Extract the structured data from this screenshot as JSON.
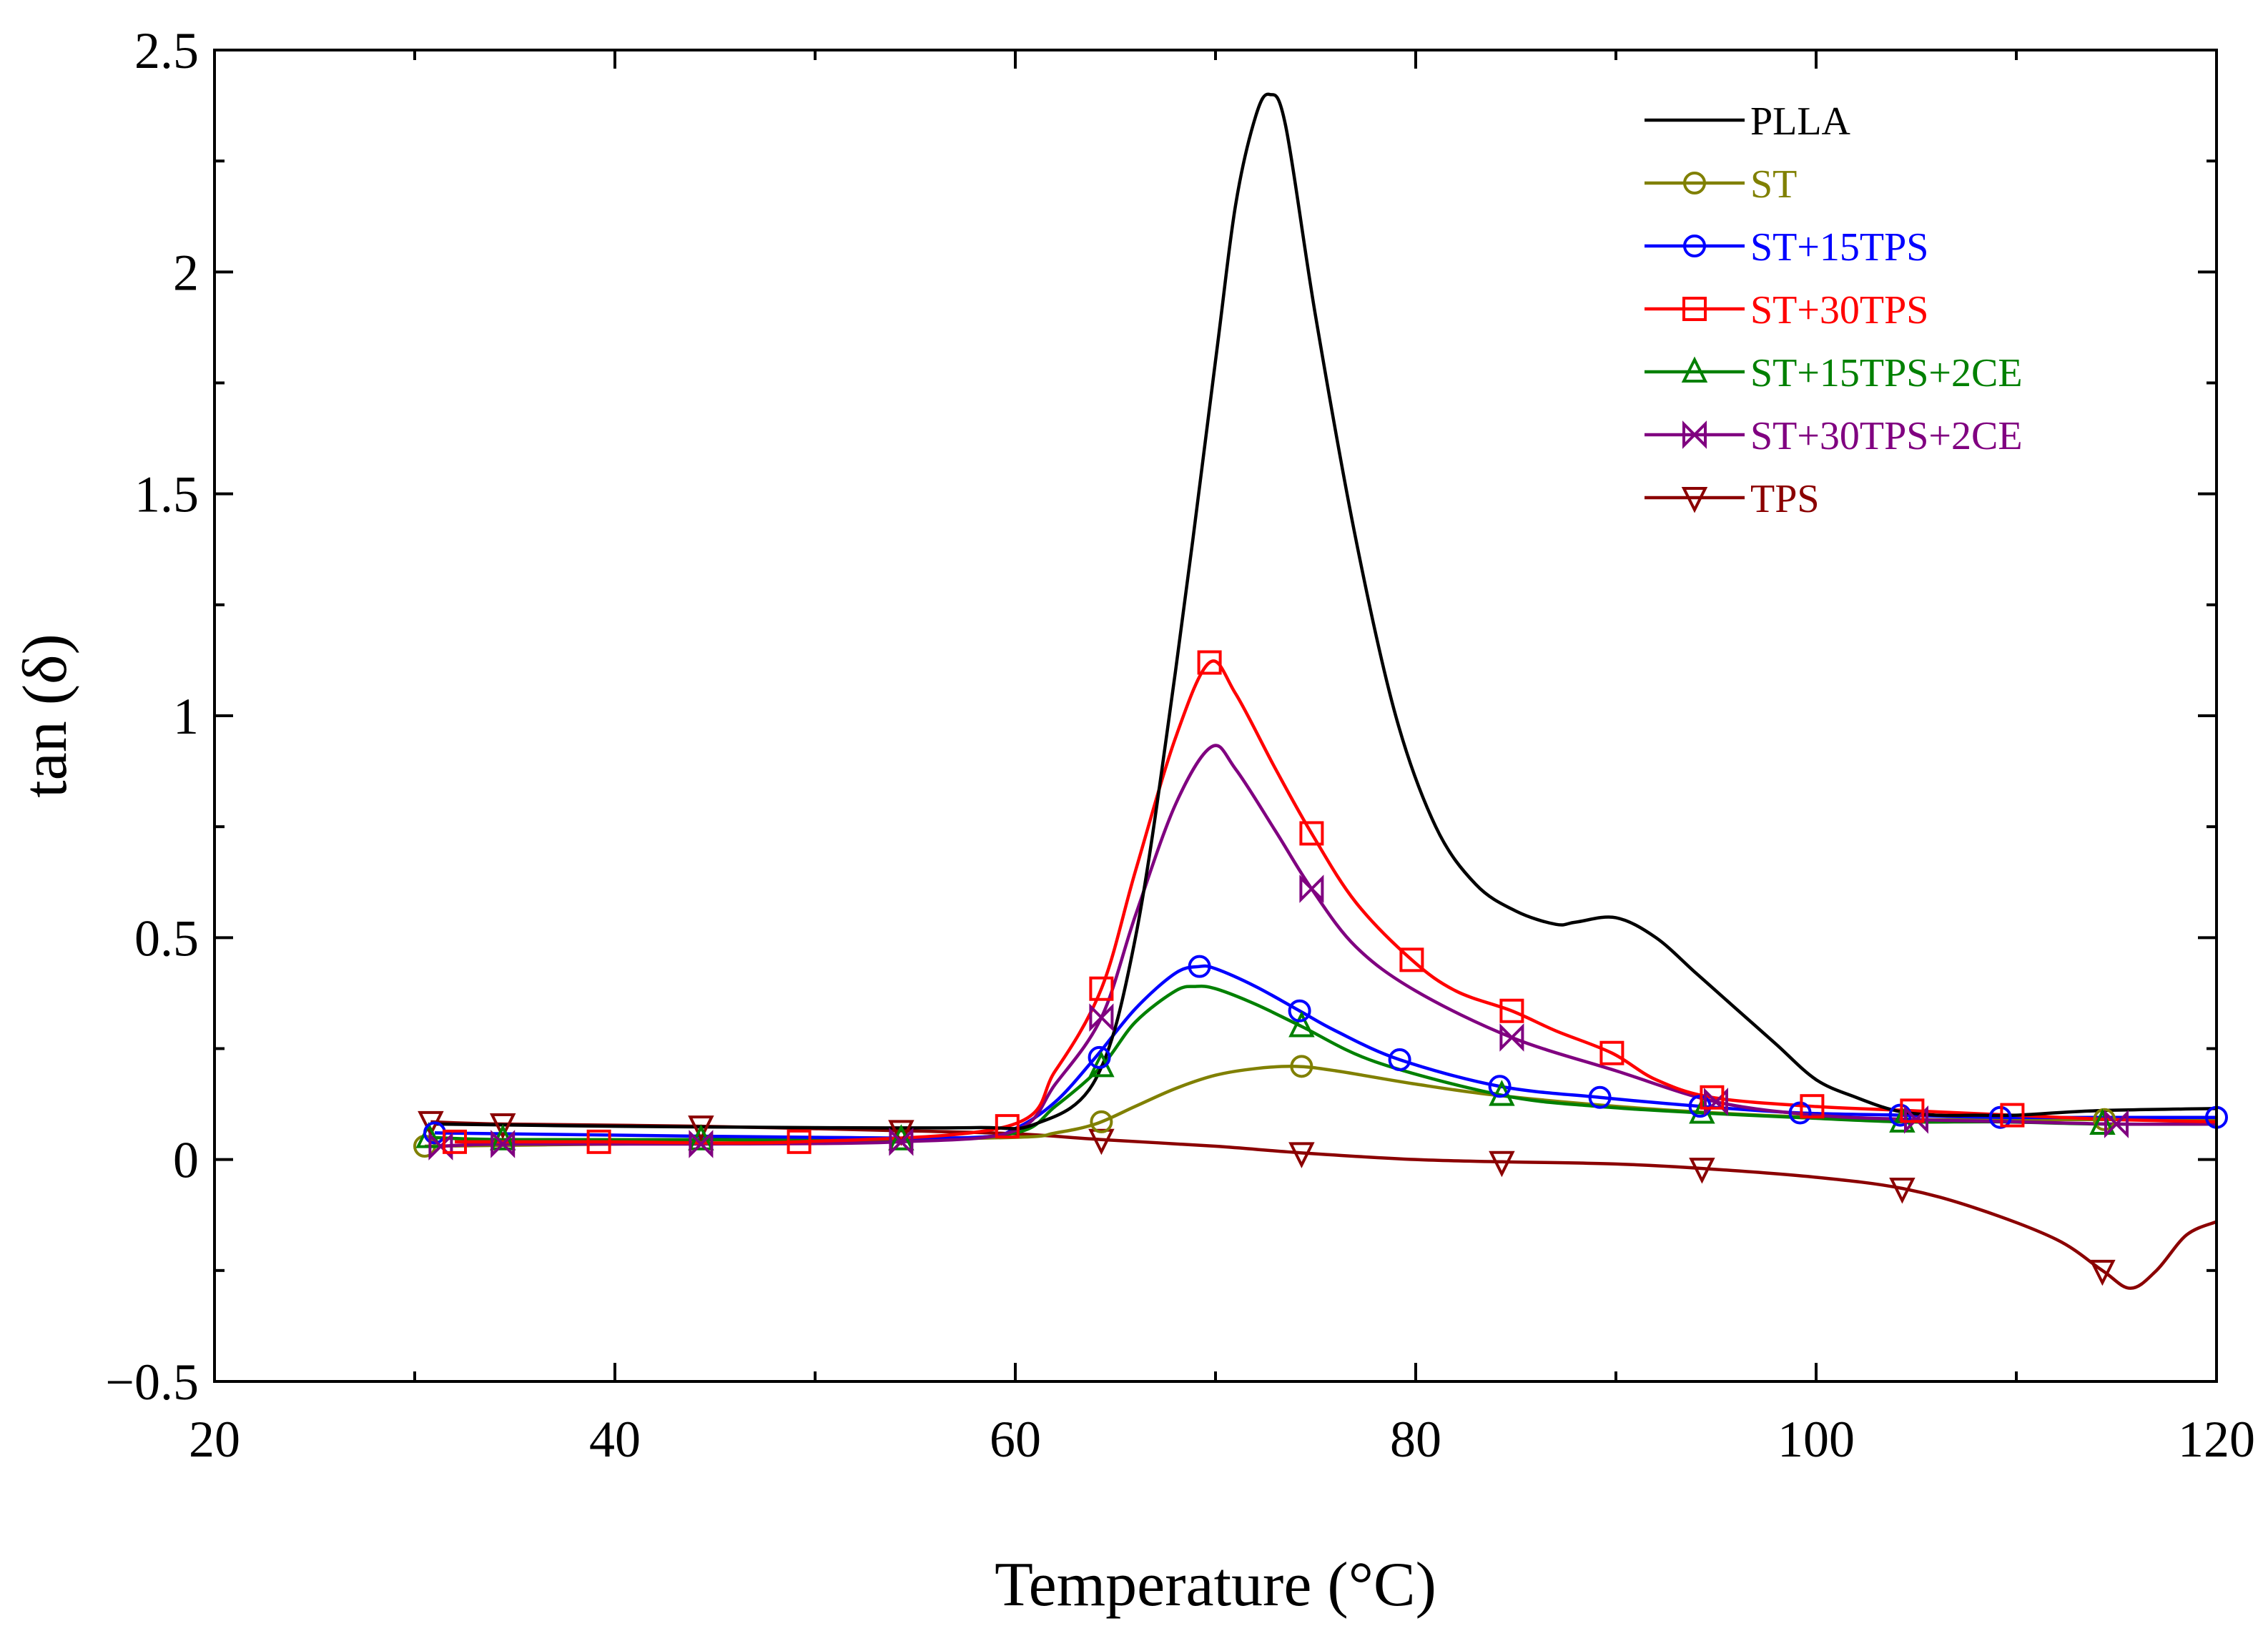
{
  "chart_data": {
    "type": "line",
    "title": "",
    "xlabel": "Temperature (°C)",
    "ylabel": "tan (δ)",
    "xlim": [
      20,
      120
    ],
    "ylim": [
      -0.5,
      2.5
    ],
    "xticks": [
      20,
      40,
      60,
      80,
      100,
      120
    ],
    "xtick_labels": [
      "20",
      "40",
      "60",
      "80",
      "100",
      "120"
    ],
    "yticks": [
      -0.5,
      0,
      0.5,
      1,
      1.5,
      2,
      2.5
    ],
    "ytick_labels": [
      "−0.5",
      "0",
      "0.5",
      "1",
      "1.5",
      "2",
      "2.5"
    ],
    "grid": false,
    "legend_position": "top-right",
    "series": [
      {
        "name": "PLLA",
        "color": "#000000",
        "marker": "none",
        "x": [
          31,
          40,
          50,
          58,
          61,
          64,
          66,
          68,
          70,
          71,
          72,
          72.7,
          73.5,
          75,
          77,
          79,
          81,
          83,
          85,
          87,
          88,
          90,
          92,
          94,
          96,
          98,
          100,
          102,
          104,
          106,
          108,
          110,
          114,
          120
        ],
        "y": [
          0.08,
          0.075,
          0.072,
          0.072,
          0.08,
          0.18,
          0.5,
          1.1,
          1.8,
          2.15,
          2.35,
          2.4,
          2.33,
          1.9,
          1.4,
          1.0,
          0.75,
          0.62,
          0.56,
          0.53,
          0.535,
          0.545,
          0.5,
          0.42,
          0.34,
          0.26,
          0.18,
          0.14,
          0.11,
          0.1,
          0.1,
          0.1,
          0.11,
          0.115
        ],
        "marker_x": [],
        "marker_y": []
      },
      {
        "name": "ST",
        "color": "#808000",
        "marker": "circle",
        "x": [
          30.5,
          40,
          50,
          60,
          62,
          64,
          66,
          68,
          70,
          72,
          74,
          76,
          80,
          84,
          90,
          95,
          100,
          105,
          110,
          114,
          120
        ],
        "y": [
          0.03,
          0.035,
          0.04,
          0.05,
          0.06,
          0.08,
          0.12,
          0.16,
          0.19,
          0.205,
          0.21,
          0.2,
          0.17,
          0.145,
          0.12,
          0.105,
          0.095,
          0.09,
          0.09,
          0.09,
          0.09
        ],
        "marker_x": [
          30.5,
          64.3,
          74.3,
          114.4
        ],
        "marker_y": [
          0.03,
          0.085,
          0.21,
          0.09
        ]
      },
      {
        "name": "ST+15TPS",
        "color": "#0000ff",
        "marker": "circle",
        "x": [
          31,
          40,
          50,
          58,
          60,
          62,
          64,
          66,
          68,
          69.2,
          70,
          72,
          74.2,
          76,
          79.2,
          84.2,
          89.2,
          94.2,
          99.2,
          104.2,
          109.2,
          114.2,
          120
        ],
        "y": [
          0.06,
          0.055,
          0.05,
          0.05,
          0.07,
          0.13,
          0.23,
          0.34,
          0.42,
          0.435,
          0.43,
          0.39,
          0.335,
          0.29,
          0.225,
          0.165,
          0.14,
          0.12,
          0.105,
          0.1,
          0.095,
          0.095,
          0.095
        ],
        "marker_x": [
          31,
          64.2,
          69.2,
          74.2,
          79.2,
          84.2,
          89.2,
          94.2,
          99.2,
          104.2,
          109.2,
          120
        ],
        "marker_y": [
          0.06,
          0.23,
          0.435,
          0.335,
          0.225,
          0.165,
          0.14,
          0.12,
          0.105,
          0.1,
          0.095,
          0.095
        ]
      },
      {
        "name": "ST+30TPS",
        "color": "#ff0000",
        "marker": "square",
        "x": [
          32,
          39.2,
          49.2,
          59.6,
          62,
          64.3,
          66,
          68,
          69.7,
          71,
          73,
          74.8,
          77,
          79.8,
          82,
          84.8,
          87,
          89.8,
          92,
          94.8,
          99.8,
          104.8,
          109.8,
          115,
          120
        ],
        "y": [
          0.04,
          0.04,
          0.04,
          0.075,
          0.2,
          0.385,
          0.65,
          0.95,
          1.12,
          1.05,
          0.88,
          0.735,
          0.58,
          0.45,
          0.38,
          0.335,
          0.29,
          0.24,
          0.18,
          0.14,
          0.12,
          0.11,
          0.1,
          0.09,
          0.085
        ],
        "marker_x": [
          32,
          39.2,
          49.2,
          59.6,
          64.3,
          69.7,
          74.8,
          79.8,
          84.8,
          89.8,
          94.8,
          99.8,
          104.8,
          109.8
        ],
        "marker_y": [
          0.04,
          0.04,
          0.04,
          0.075,
          0.385,
          1.12,
          0.735,
          0.45,
          0.335,
          0.24,
          0.14,
          0.12,
          0.11,
          0.1
        ]
      },
      {
        "name": "ST+15TPS+2CE",
        "color": "#008000",
        "marker": "triangle-up",
        "x": [
          30.7,
          34.4,
          44.3,
          54.3,
          60,
          62,
          64.3,
          66,
          68,
          69,
          70,
          72,
          74.3,
          78,
          84.3,
          89,
          94.3,
          99,
          104.3,
          109,
          114.3,
          120
        ],
        "y": [
          0.05,
          0.045,
          0.045,
          0.045,
          0.06,
          0.12,
          0.21,
          0.31,
          0.38,
          0.39,
          0.385,
          0.35,
          0.3,
          0.22,
          0.145,
          0.12,
          0.105,
          0.095,
          0.085,
          0.085,
          0.08,
          0.08
        ],
        "marker_x": [
          30.7,
          34.4,
          44.3,
          54.3,
          64.3,
          74.3,
          84.3,
          94.3,
          104.3,
          114.3
        ],
        "marker_y": [
          0.05,
          0.045,
          0.045,
          0.045,
          0.21,
          0.3,
          0.145,
          0.105,
          0.085,
          0.08
        ]
      },
      {
        "name": "ST+30TPS+2CE",
        "color": "#800080",
        "marker": "bowtie",
        "x": [
          31.3,
          34.4,
          44.3,
          54.3,
          60,
          62,
          64.3,
          66,
          68,
          69.8,
          71,
          73,
          74.8,
          77,
          80,
          84.8,
          90,
          95,
          100,
          105,
          110,
          115,
          120
        ],
        "y": [
          0.03,
          0.035,
          0.035,
          0.04,
          0.065,
          0.17,
          0.32,
          0.55,
          0.8,
          0.93,
          0.88,
          0.74,
          0.61,
          0.48,
          0.38,
          0.275,
          0.2,
          0.13,
          0.1,
          0.09,
          0.085,
          0.08,
          0.08
        ],
        "marker_x": [
          31.3,
          34.4,
          44.3,
          54.3,
          64.3,
          74.8,
          84.8,
          95,
          105,
          115
        ],
        "marker_y": [
          0.03,
          0.035,
          0.035,
          0.04,
          0.32,
          0.61,
          0.275,
          0.13,
          0.09,
          0.08
        ]
      },
      {
        "name": "TPS",
        "color": "#8b0000",
        "marker": "triangle-down",
        "x": [
          30.8,
          34.4,
          44.3,
          54.3,
          60,
          64.3,
          70,
          74.3,
          80,
          84.3,
          90,
          94.3,
          100,
          104.3,
          108,
          112,
          114.3,
          115.7,
          117,
          118.5,
          120
        ],
        "y": [
          0.085,
          0.08,
          0.075,
          0.065,
          0.058,
          0.045,
          0.03,
          0.015,
          0.0,
          -0.005,
          -0.01,
          -0.02,
          -0.04,
          -0.065,
          -0.11,
          -0.18,
          -0.25,
          -0.29,
          -0.25,
          -0.17,
          -0.14
        ],
        "marker_x": [
          30.8,
          34.4,
          44.3,
          54.3,
          64.3,
          74.3,
          84.3,
          94.3,
          104.3,
          114.3
        ],
        "marker_y": [
          0.085,
          0.08,
          0.075,
          0.065,
          0.045,
          0.015,
          -0.005,
          -0.02,
          -0.065,
          -0.25
        ]
      }
    ]
  }
}
